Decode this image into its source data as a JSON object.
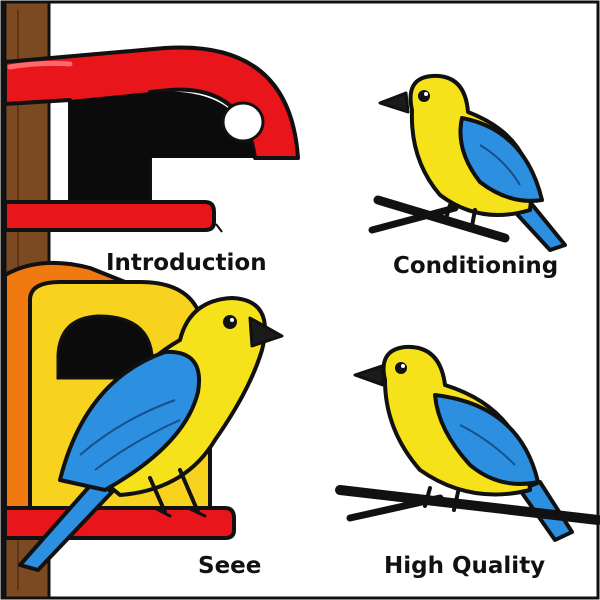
{
  "captions": {
    "introduction": "Introduction",
    "conditioning": "Conditioning",
    "seee": "Seee",
    "high_quality": "High Quality"
  },
  "colors": {
    "post": "#7b4a22",
    "red_house": "#e8151b",
    "orange_house": "#f07a10",
    "yellow_house": "#f7d21e",
    "bird_yellow": "#f6e21a",
    "bird_blue": "#2c8fe0",
    "beak": "#1b1b1b",
    "perch": "#111111",
    "outline": "#111111"
  },
  "icons": [
    "wooden-post",
    "red-birdhouse",
    "orange-yellow-birdhouse",
    "yellow-blue-bird",
    "perch-branch"
  ]
}
